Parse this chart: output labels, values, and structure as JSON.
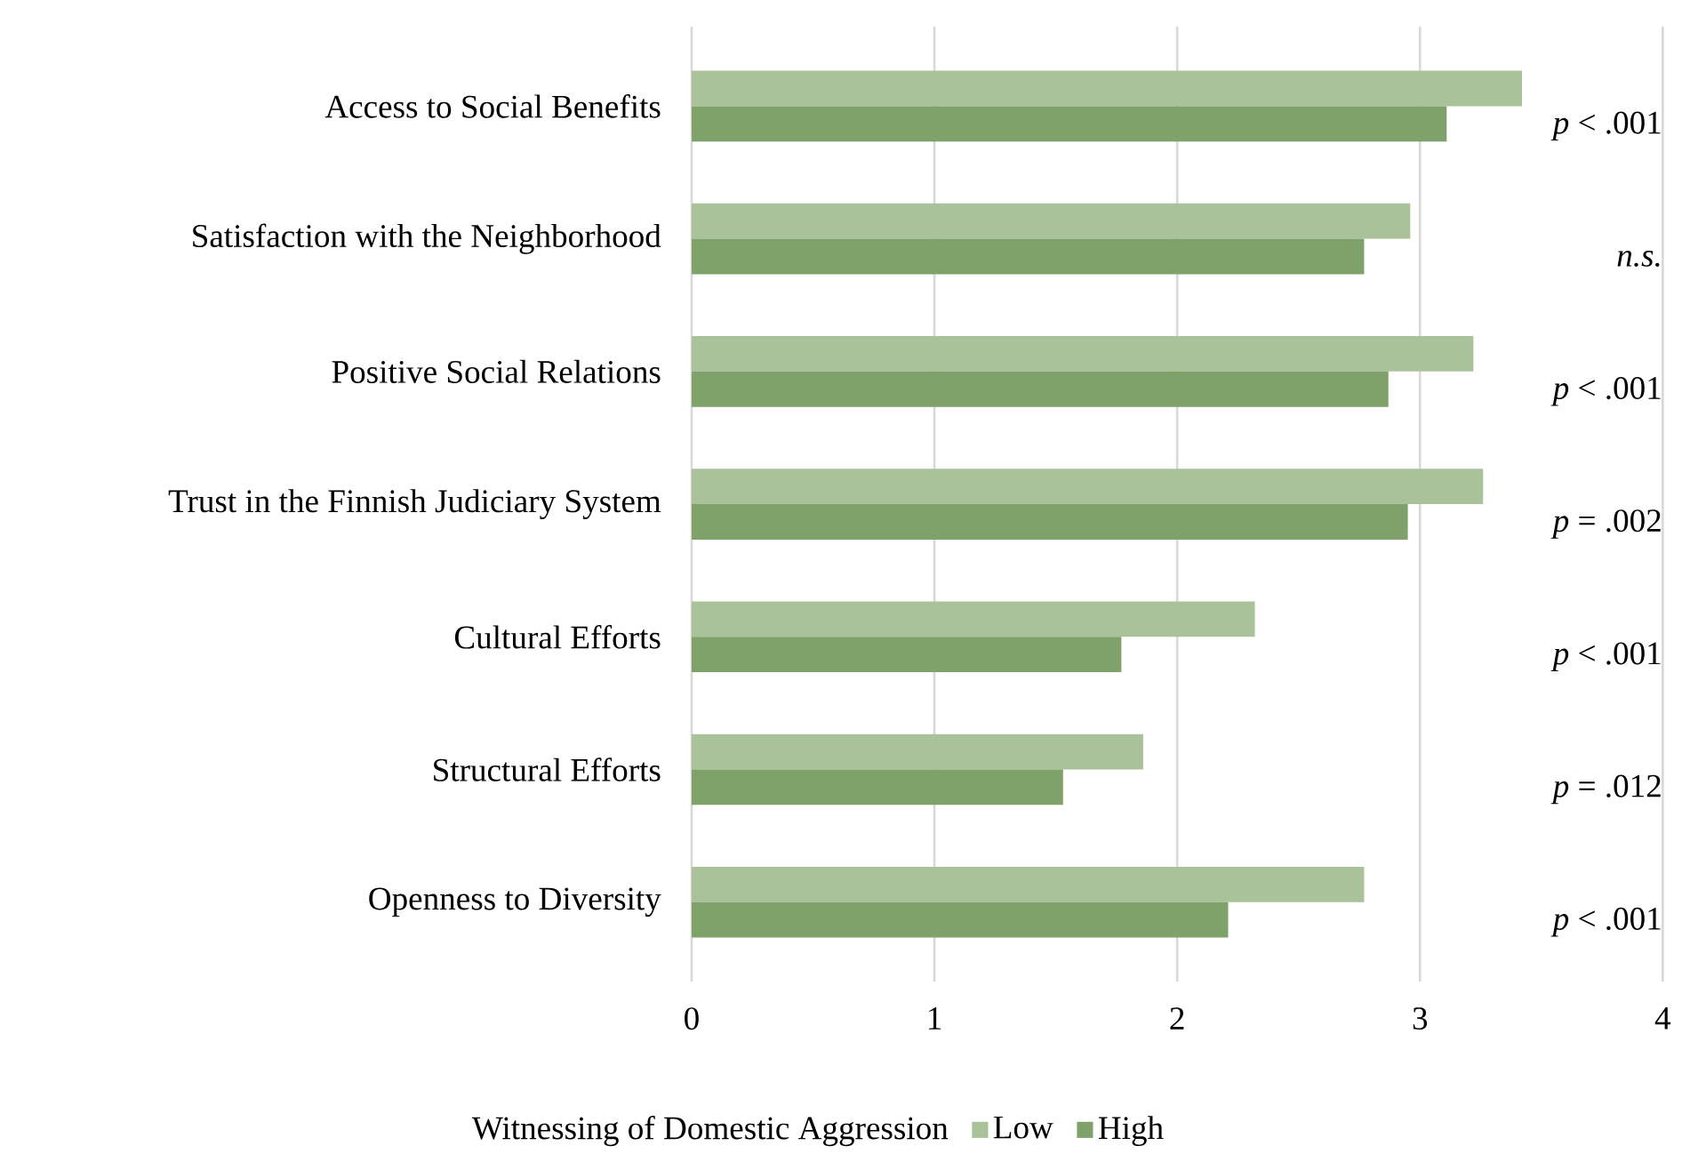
{
  "chart_data": {
    "type": "bar",
    "orientation": "horizontal",
    "categories": [
      "Access to Social Benefits",
      "Satisfaction with the Neighborhood",
      "Positive Social Relations",
      "Trust in the Finnish Judiciary System",
      "Cultural Efforts",
      "Structural Efforts",
      "Openness to Diversity"
    ],
    "series": [
      {
        "name": "Low",
        "color": "#a9c29a",
        "values": [
          3.42,
          2.96,
          3.22,
          3.26,
          2.32,
          1.86,
          2.77
        ]
      },
      {
        "name": "High",
        "color": "#7ea26a",
        "values": [
          3.11,
          2.77,
          2.87,
          2.95,
          1.77,
          1.53,
          2.21
        ]
      }
    ],
    "xlim": [
      0,
      4
    ],
    "xticks": [
      0,
      1,
      2,
      3,
      4
    ],
    "grid": "x",
    "legend": "bottom",
    "legend_title": "Witnessing of Domestic Aggression",
    "annotations": [
      "*p* < .001",
      "*n.s.*",
      "*p* < .001",
      "*p* = .002",
      "*p* < .001",
      "*p* = .012",
      "*p* < .001"
    ]
  }
}
